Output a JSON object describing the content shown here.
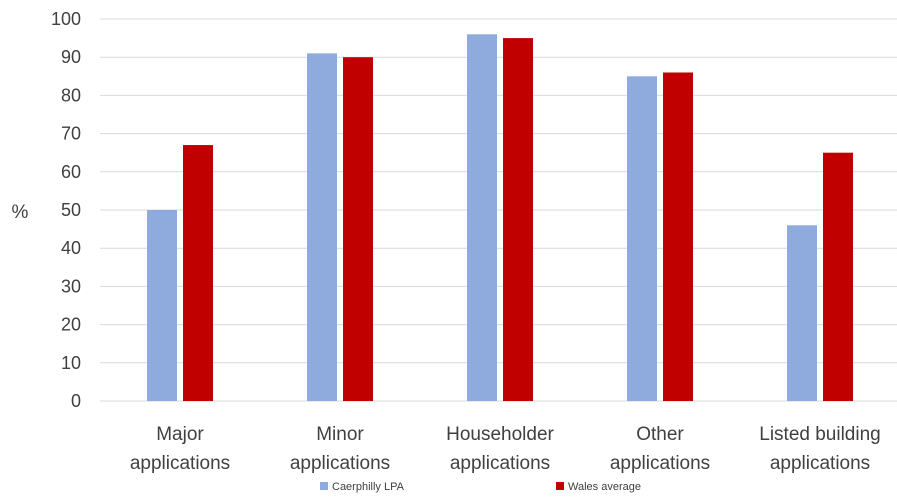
{
  "chart_data": {
    "type": "bar",
    "ylabel": "%",
    "ylim": [
      0,
      100
    ],
    "ytick_step": 10,
    "grid": true,
    "legend_position": "bottom",
    "categories": [
      [
        "Major",
        "applications"
      ],
      [
        "Minor",
        "applications"
      ],
      [
        "Householder",
        "applications"
      ],
      [
        "Other",
        "applications"
      ],
      [
        "Listed building",
        "applications"
      ]
    ],
    "series": [
      {
        "name": "Caerphilly LPA",
        "color": "#8faadc",
        "values": [
          50,
          91,
          96,
          85,
          46
        ]
      },
      {
        "name": "Wales average",
        "color": "#c00000",
        "values": [
          67,
          90,
          95,
          86,
          65
        ]
      }
    ]
  }
}
